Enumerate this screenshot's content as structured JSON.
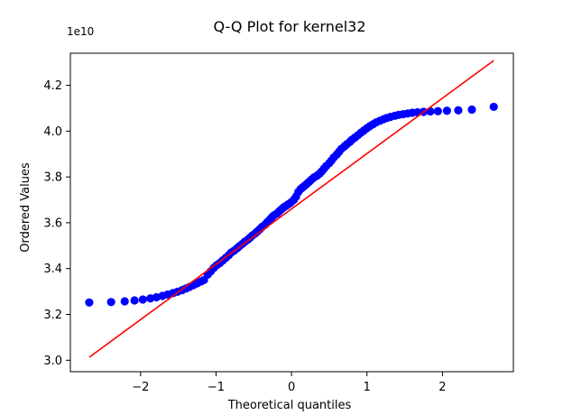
{
  "chart_data": {
    "type": "scatter",
    "title": "Q-Q Plot for kernel32",
    "xlabel": "Theoretical quantiles",
    "ylabel": "Ordered Values",
    "y_offset_label": "1e10",
    "y_multiplier": 10000000000,
    "xlim": [
      -2.93,
      2.94
    ],
    "ylim": [
      2.95,
      4.34
    ],
    "x_ticks": [
      -2,
      -1,
      0,
      1,
      2
    ],
    "x_tick_labels": [
      "−2",
      "−1",
      "0",
      "1",
      "2"
    ],
    "y_ticks": [
      3.0,
      3.2,
      3.4,
      3.6,
      3.8,
      4.0,
      4.2
    ],
    "y_tick_labels": [
      "3.0",
      "3.2",
      "3.4",
      "3.6",
      "3.8",
      "4.0",
      "4.2"
    ],
    "grid": false,
    "legend": "none",
    "colors": {
      "points": "#0000ff",
      "fit_line": "#ff0000"
    },
    "series": [
      {
        "kind": "points",
        "x": [
          -2.68,
          -2.39,
          -2.21,
          -2.08,
          -1.97,
          -1.87,
          -1.79,
          -1.71,
          -1.64,
          -1.57,
          -1.51,
          -1.45,
          -1.4,
          -1.35,
          -1.3,
          -1.25,
          -1.2,
          -1.16,
          -1.11,
          -1.07,
          -1.03,
          -0.99,
          -0.95,
          -0.91,
          -0.87,
          -0.83,
          -0.8,
          -0.76,
          -0.72,
          -0.69,
          -0.65,
          -0.62,
          -0.58,
          -0.55,
          -0.52,
          -0.48,
          -0.45,
          -0.42,
          -0.39,
          -0.35,
          -0.32,
          -0.29,
          -0.26,
          -0.23,
          -0.19,
          -0.16,
          -0.13,
          -0.1,
          -0.07,
          -0.04,
          -0.01,
          0.03,
          0.06,
          0.09,
          0.12,
          0.15,
          0.18,
          0.21,
          0.24,
          0.27,
          0.3,
          0.34,
          0.37,
          0.4,
          0.43,
          0.46,
          0.5,
          0.53,
          0.56,
          0.6,
          0.63,
          0.66,
          0.7,
          0.73,
          0.77,
          0.8,
          0.84,
          0.88,
          0.92,
          0.96,
          1.0,
          1.04,
          1.08,
          1.12,
          1.17,
          1.22,
          1.26,
          1.31,
          1.37,
          1.42,
          1.48,
          1.54,
          1.6,
          1.67,
          1.75,
          1.84,
          1.94,
          2.06,
          2.21,
          2.39,
          2.68
        ],
        "y": [
          3.252,
          3.254,
          3.257,
          3.261,
          3.265,
          3.27,
          3.275,
          3.281,
          3.287,
          3.293,
          3.299,
          3.306,
          3.313,
          3.32,
          3.328,
          3.336,
          3.344,
          3.35,
          3.374,
          3.388,
          3.403,
          3.415,
          3.424,
          3.436,
          3.447,
          3.459,
          3.47,
          3.478,
          3.489,
          3.498,
          3.508,
          3.517,
          3.526,
          3.535,
          3.544,
          3.554,
          3.563,
          3.572,
          3.582,
          3.592,
          3.603,
          3.613,
          3.624,
          3.633,
          3.641,
          3.651,
          3.66,
          3.668,
          3.674,
          3.681,
          3.688,
          3.7,
          3.714,
          3.734,
          3.747,
          3.755,
          3.763,
          3.772,
          3.781,
          3.79,
          3.798,
          3.806,
          3.814,
          3.824,
          3.836,
          3.848,
          3.86,
          3.872,
          3.885,
          3.898,
          3.91,
          3.922,
          3.933,
          3.942,
          3.952,
          3.962,
          3.972,
          3.982,
          3.993,
          4.003,
          4.013,
          4.022,
          4.03,
          4.038,
          4.045,
          4.052,
          4.057,
          4.062,
          4.067,
          4.071,
          4.074,
          4.077,
          4.08,
          4.082,
          4.084,
          4.086,
          4.087,
          4.089,
          4.091,
          4.094,
          4.106
        ]
      },
      {
        "kind": "fit_line",
        "x": [
          -2.68,
          2.68
        ],
        "y": [
          3.013,
          4.308
        ]
      }
    ]
  }
}
